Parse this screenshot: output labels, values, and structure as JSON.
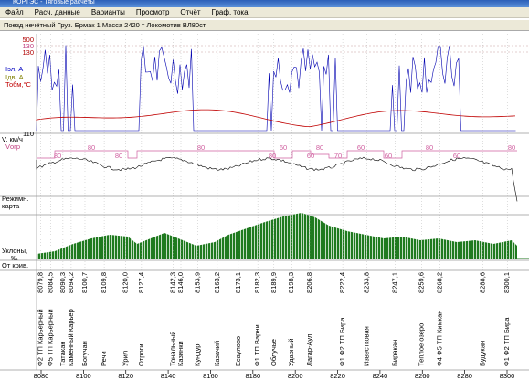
{
  "window": {
    "title": "КОРТЭС - Тяговые расчеты",
    "menu": [
      "Файл",
      "Расч. данные",
      "Варианты",
      "Просмотр",
      "Отчёт",
      "Граф. тока"
    ],
    "info": "Поезд нечётный Груз. Ермак 1  Масса 2420 т  Локомотив ВЛ80ст",
    "left_labels": {
      "top1": "500",
      "top2": "130",
      "top3": "130",
      "iel": "Iэл, А",
      "idv": "Iдв, А",
      "tobm": "Тобм,°С",
      "bottom": "110",
      "v": "V, км/ч",
      "vogr": "Vогр",
      "regime1": "Режимн.",
      "regime2": "карта",
      "slope1": "Уклоны,",
      "slope2": "‰",
      "curve": "От крив."
    },
    "speed_limits": [
      "80",
      "80",
      "80",
      "80",
      "80",
      "60",
      "60",
      "80",
      "70",
      "60",
      "60",
      "80",
      "60",
      "80"
    ],
    "stations": [
      {
        "name": "Ф2 ТП Карьерный",
        "km": "8079,8"
      },
      {
        "name": "Ф5 ТП Карьерный",
        "km": "8084,5"
      },
      {
        "name": "Татакан",
        "km": "8090,3"
      },
      {
        "name": "Каменный Карьер",
        "km": "8094,2"
      },
      {
        "name": "Богучан",
        "km": "8100,7"
      },
      {
        "name": "Речи",
        "km": "8109,8"
      },
      {
        "name": "Урил",
        "km": "8120,0"
      },
      {
        "name": "Отроги",
        "km": "8127,4"
      },
      {
        "name": "Тональный",
        "km": "8142,3"
      },
      {
        "name": "Казинки",
        "km": "8146,0"
      },
      {
        "name": "Кундур",
        "km": "8153,9"
      },
      {
        "name": "Казачий",
        "km": "8163,2"
      },
      {
        "name": "Есаулово",
        "km": "8173,1"
      },
      {
        "name": "Ф1 ТП Варни",
        "km": "8182,3"
      },
      {
        "name": "Облучье",
        "km": "8189,9"
      },
      {
        "name": "Ударный",
        "km": "8198,3"
      },
      {
        "name": "Лагар-Аул",
        "km": "8206,8"
      },
      {
        "name": "Ф1 Ф2 ТП Бира",
        "km": "8222,4"
      },
      {
        "name": "Известковая",
        "km": "8233,8"
      },
      {
        "name": "Биракан",
        "km": "8247,1"
      },
      {
        "name": "Теплое озеро",
        "km": "8259,6"
      },
      {
        "name": "Ф4 Ф5 ТП Кимкан",
        "km": "8268,2"
      },
      {
        "name": "Будукан",
        "km": "8288,6"
      },
      {
        "name": "Ф1 Ф2 ТП Бира",
        "km": "8300,1"
      }
    ],
    "km_ticks": [
      8080,
      8100,
      8120,
      8140,
      8160,
      8180,
      8200,
      8220,
      8240,
      8260,
      8280,
      8300
    ]
  }
}
